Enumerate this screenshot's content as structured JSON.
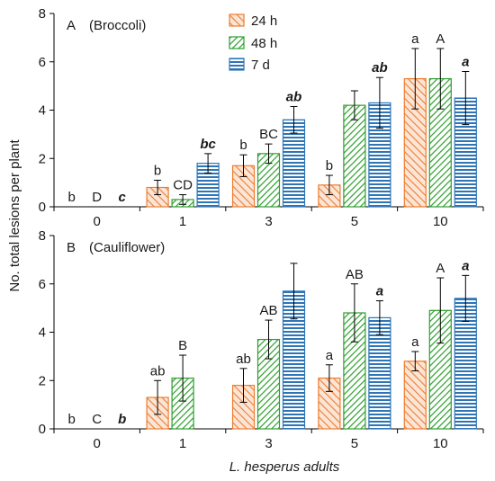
{
  "figure": {
    "shared_ylabel": "No. total lesions per plant",
    "shared_xlabel": "L. hesperus adults",
    "legend": [
      {
        "key": "h24",
        "label": "24 h"
      },
      {
        "key": "h48",
        "label": "48 h"
      },
      {
        "key": "d7",
        "label": "7 d"
      }
    ]
  },
  "colors": {
    "h24_stroke": "#ED7D31",
    "h24_fill": "#FBE5D6",
    "h48_stroke": "#2E9E2E",
    "h48_fill": "#E2F0D9",
    "d7_stroke": "#2E75B6",
    "d7_fill": "#DDEBF7",
    "axis": "#000000"
  },
  "chart_data": [
    {
      "type": "bar",
      "panel_letter": "A",
      "panel_name": "(Broccoli)",
      "categories": [
        "0",
        "1",
        "3",
        "5",
        "10"
      ],
      "ylim": [
        0,
        8
      ],
      "yticks": [
        "0",
        "2",
        "4",
        "6",
        "8"
      ],
      "ylabel": "No. total lesions per plant",
      "xlabel": "",
      "grid": false,
      "legend_position": "top-center",
      "series": [
        {
          "name": "24 h",
          "key": "h24",
          "values": [
            0,
            0.8,
            1.7,
            0.9,
            5.3
          ],
          "errors": [
            0,
            0.3,
            0.45,
            0.4,
            1.25
          ],
          "letters": [
            "b",
            "b",
            "b",
            "b",
            "a"
          ]
        },
        {
          "name": "48 h",
          "key": "h48",
          "values": [
            0,
            0.3,
            2.2,
            4.2,
            5.3
          ],
          "errors": [
            0,
            0.2,
            0.4,
            0.6,
            1.25
          ],
          "letters": [
            "D",
            "CD",
            "BC",
            "",
            "A"
          ]
        },
        {
          "name": "7 d",
          "key": "d7",
          "values": [
            0,
            1.8,
            3.6,
            4.3,
            4.5
          ],
          "errors": [
            0,
            0.4,
            0.55,
            1.05,
            1.1
          ],
          "letters": [
            "c",
            "bc",
            "ab",
            "ab",
            "a"
          ]
        }
      ]
    },
    {
      "type": "bar",
      "panel_letter": "B",
      "panel_name": "(Cauliflower)",
      "categories": [
        "0",
        "1",
        "3",
        "5",
        "10"
      ],
      "ylim": [
        0,
        8
      ],
      "yticks": [
        "0",
        "2",
        "4",
        "6",
        "8"
      ],
      "ylabel": "No. total lesions per plant",
      "xlabel": "L. hesperus adults",
      "grid": false,
      "series": [
        {
          "name": "24 h",
          "key": "h24",
          "values": [
            0,
            1.3,
            1.8,
            2.1,
            2.8
          ],
          "errors": [
            0,
            0.7,
            0.7,
            0.55,
            0.4
          ],
          "letters": [
            "b",
            "ab",
            "ab",
            "a",
            "a"
          ]
        },
        {
          "name": "48 h",
          "key": "h48",
          "values": [
            0,
            2.1,
            3.7,
            4.8,
            4.9
          ],
          "errors": [
            0,
            0.95,
            0.8,
            1.2,
            1.35
          ],
          "letters": [
            "C",
            "B",
            "AB",
            "AB",
            "A"
          ]
        },
        {
          "name": "7 d",
          "key": "d7",
          "values": [
            0,
            0,
            5.7,
            4.6,
            5.4
          ],
          "errors": [
            0,
            0,
            1.15,
            0.7,
            0.95
          ],
          "letters": [
            "b",
            "",
            "",
            "a",
            "a"
          ]
        }
      ]
    }
  ]
}
